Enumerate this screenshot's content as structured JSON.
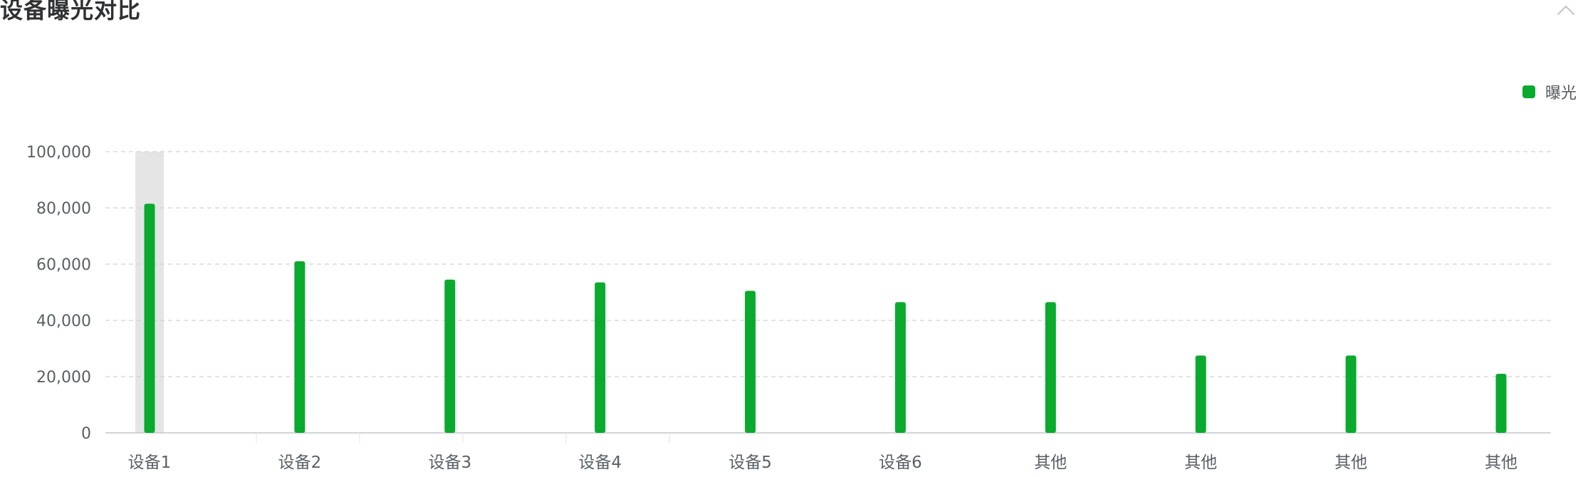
{
  "panel": {
    "title": "设备曝光对比"
  },
  "colors": {
    "bar": "#0aaa2e",
    "grid": "#cfd2d6",
    "axis": "#c3c7cc",
    "highlight": "#e5e5e5",
    "text": "#5a5f66",
    "title": "#2f3133"
  },
  "icons": {
    "collapse": "chevron-up-icon"
  },
  "chart_data": {
    "type": "bar",
    "title": "设备曝光对比",
    "xlabel": "",
    "ylabel": "",
    "categories": [
      "设备1",
      "设备2",
      "设备3",
      "设备4",
      "设备5",
      "设备6",
      "其他",
      "其他",
      "其他",
      "其他"
    ],
    "series": [
      {
        "name": "曝光",
        "values": [
          81500,
          61000,
          54500,
          53500,
          50500,
          46500,
          46500,
          27500,
          27500,
          21000
        ]
      }
    ],
    "ylim": [
      0,
      100000
    ],
    "yticks": [
      0,
      20000,
      40000,
      60000,
      80000,
      100000
    ],
    "ytick_labels": [
      "0",
      "20,000",
      "40,000",
      "60,000",
      "80,000",
      "100,000"
    ],
    "grid": true,
    "legend_position": "top-right",
    "highlighted_category_index": 0
  }
}
